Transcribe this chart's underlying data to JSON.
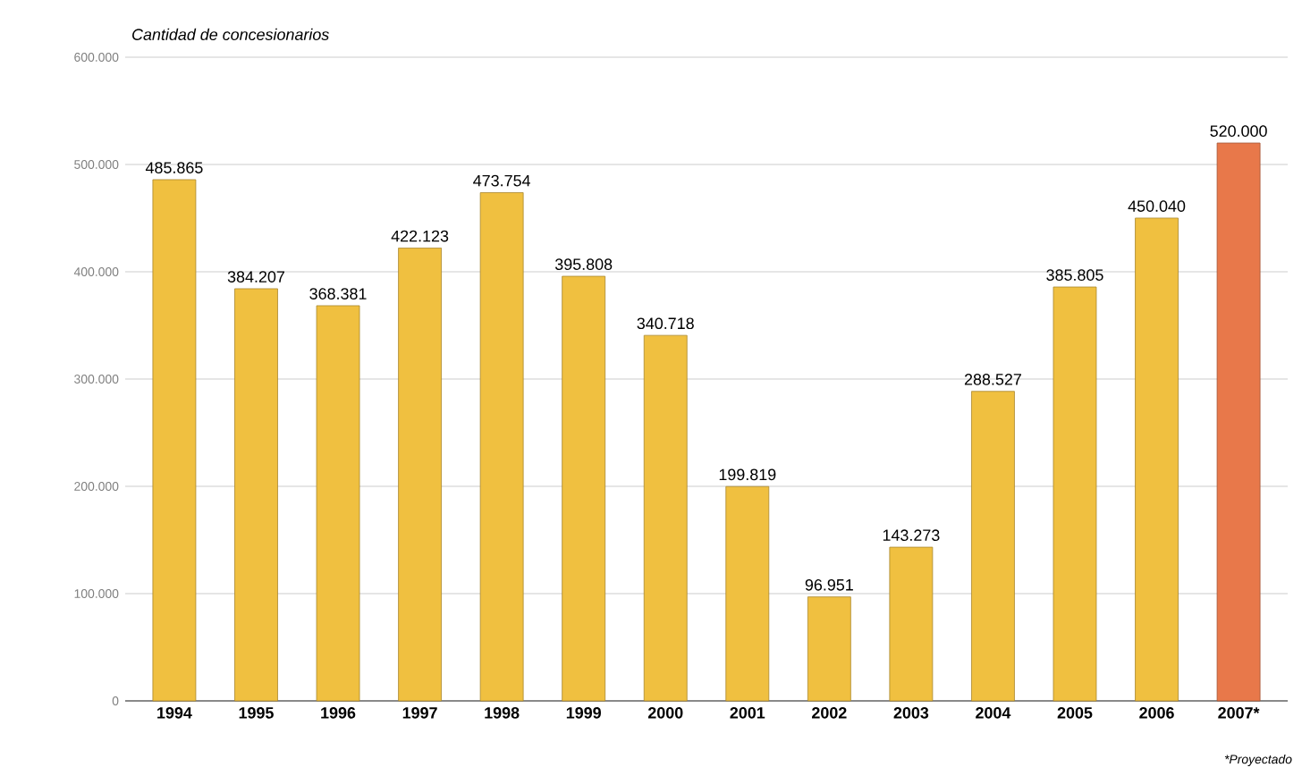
{
  "chart_data": {
    "type": "bar",
    "title": "Cantidad de concesionarios",
    "categories": [
      "1994",
      "1995",
      "1996",
      "1997",
      "1998",
      "1999",
      "2000",
      "2001",
      "2002",
      "2003",
      "2004",
      "2005",
      "2006",
      "2007*"
    ],
    "values": [
      485865,
      384207,
      368381,
      422123,
      473754,
      395808,
      340718,
      199819,
      96951,
      143273,
      288527,
      385805,
      450040,
      520000
    ],
    "value_labels": [
      "485.865",
      "384.207",
      "368.381",
      "422.123",
      "473.754",
      "395.808",
      "340.718",
      "199.819",
      "96.951",
      "143.273",
      "288.527",
      "385.805",
      "450.040",
      "520.000"
    ],
    "colors": [
      "#f0c040",
      "#f0c040",
      "#f0c040",
      "#f0c040",
      "#f0c040",
      "#f0c040",
      "#f0c040",
      "#f0c040",
      "#f0c040",
      "#f0c040",
      "#f0c040",
      "#f0c040",
      "#f0c040",
      "#e8784a"
    ],
    "ylim": [
      0,
      600000
    ],
    "yticks": [
      {
        "value": 0,
        "label": "0"
      },
      {
        "value": 100000,
        "label": "100.000"
      },
      {
        "value": 200000,
        "label": "200.000"
      },
      {
        "value": 300000,
        "label": "300.000"
      },
      {
        "value": 400000,
        "label": "400.000"
      },
      {
        "value": 500000,
        "label": "500.000"
      },
      {
        "value": 600000,
        "label": "600.000"
      }
    ],
    "grid": "y",
    "annotations": [
      "*Proyectado"
    ]
  }
}
